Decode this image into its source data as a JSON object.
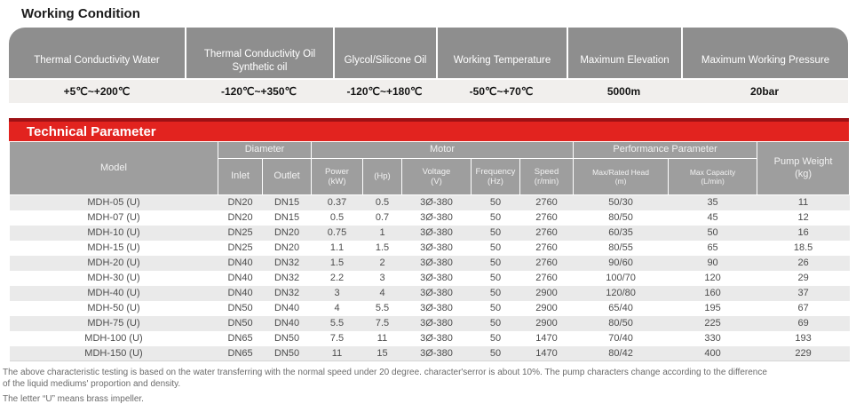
{
  "working_condition": {
    "title": "Working Condition",
    "columns": [
      {
        "label": "Thermal Conductivity Water",
        "value": "+5℃~+200℃"
      },
      {
        "label": "Thermal Conductivity Oil\nSynthetic oil",
        "value": "-120℃~+350℃"
      },
      {
        "label": "Glycol/Silicone Oil",
        "value": "-120℃~+180℃"
      },
      {
        "label": "Working Temperature",
        "value": "-50℃~+70℃"
      },
      {
        "label": "Maximum Elevation",
        "value": "5000m"
      },
      {
        "label": "Maximum Working Pressure",
        "value": "20bar"
      }
    ]
  },
  "technical": {
    "title": "Technical Parameter",
    "header": {
      "model": "Model",
      "diameter_group": "Diameter",
      "motor_group": "Motor",
      "performance_group": "Performance Parameter",
      "pump_weight": "Pump Weight\n(kg)",
      "sub": [
        "Inlet",
        "Outlet",
        "Power\n(kW)",
        "(Hp)",
        "Voltage\n(V)",
        "Frequency\n(Hz)",
        "Speed\n(r/min)",
        "Max/Rated Head\n(m)",
        "Max Capacity\n(L/min)"
      ]
    },
    "rows": [
      {
        "cells": [
          "MDH-05 (U)",
          "DN20",
          "DN15",
          "0.37",
          "0.5",
          "3Ø-380",
          "50",
          "2760",
          "50/30",
          "35",
          "11"
        ]
      },
      {
        "cells": [
          "MDH-07 (U)",
          "DN20",
          "DN15",
          "0.5",
          "0.7",
          "3Ø-380",
          "50",
          "2760",
          "80/50",
          "45",
          "12"
        ]
      },
      {
        "cells": [
          "MDH-10 (U)",
          "DN25",
          "DN20",
          "0.75",
          "1",
          "3Ø-380",
          "50",
          "2760",
          "60/35",
          "50",
          "16"
        ]
      },
      {
        "cells": [
          "MDH-15 (U)",
          "DN25",
          "DN20",
          "1.1",
          "1.5",
          "3Ø-380",
          "50",
          "2760",
          "80/55",
          "65",
          "18.5"
        ]
      },
      {
        "cells": [
          "MDH-20 (U)",
          "DN40",
          "DN32",
          "1.5",
          "2",
          "3Ø-380",
          "50",
          "2760",
          "90/60",
          "90",
          "26"
        ]
      },
      {
        "cells": [
          "MDH-30 (U)",
          "DN40",
          "DN32",
          "2.2",
          "3",
          "3Ø-380",
          "50",
          "2760",
          "100/70",
          "120",
          "29"
        ]
      },
      {
        "cells": [
          "MDH-40 (U)",
          "DN40",
          "DN32",
          "3",
          "4",
          "3Ø-380",
          "50",
          "2900",
          "120/80",
          "160",
          "37"
        ]
      },
      {
        "cells": [
          "MDH-50 (U)",
          "DN50",
          "DN40",
          "4",
          "5.5",
          "3Ø-380",
          "50",
          "2900",
          "65/40",
          "195",
          "67"
        ]
      },
      {
        "cells": [
          "MDH-75 (U)",
          "DN50",
          "DN40",
          "5.5",
          "7.5",
          "3Ø-380",
          "50",
          "2900",
          "80/50",
          "225",
          "69"
        ]
      },
      {
        "cells": [
          "MDH-100 (U)",
          "DN65",
          "DN50",
          "7.5",
          "11",
          "3Ø-380",
          "50",
          "1470",
          "70/40",
          "330",
          "193"
        ]
      },
      {
        "cells": [
          "MDH-150 (U)",
          "DN65",
          "DN50",
          "11",
          "15",
          "3Ø-380",
          "50",
          "1470",
          "80/42",
          "400",
          "229"
        ]
      }
    ]
  },
  "notes": {
    "note1": "The above characteristic testing is based on the water transferring with the normal speed under 20 degree.  character'serror is about 10%. The pump characters change according to the difference of the liquid mediums'  proportion and density.",
    "note2": "The letter  “U”  means brass impeller."
  },
  "colors": {
    "banner_red": "#e2231f",
    "banner_red_dark": "#9e1115",
    "wc_header_gray": "#8e8e8e",
    "tech_header_gray": "#9e9e9e",
    "value_row_bg": "#f1efed",
    "stripe_bg": "#eaeaea"
  }
}
